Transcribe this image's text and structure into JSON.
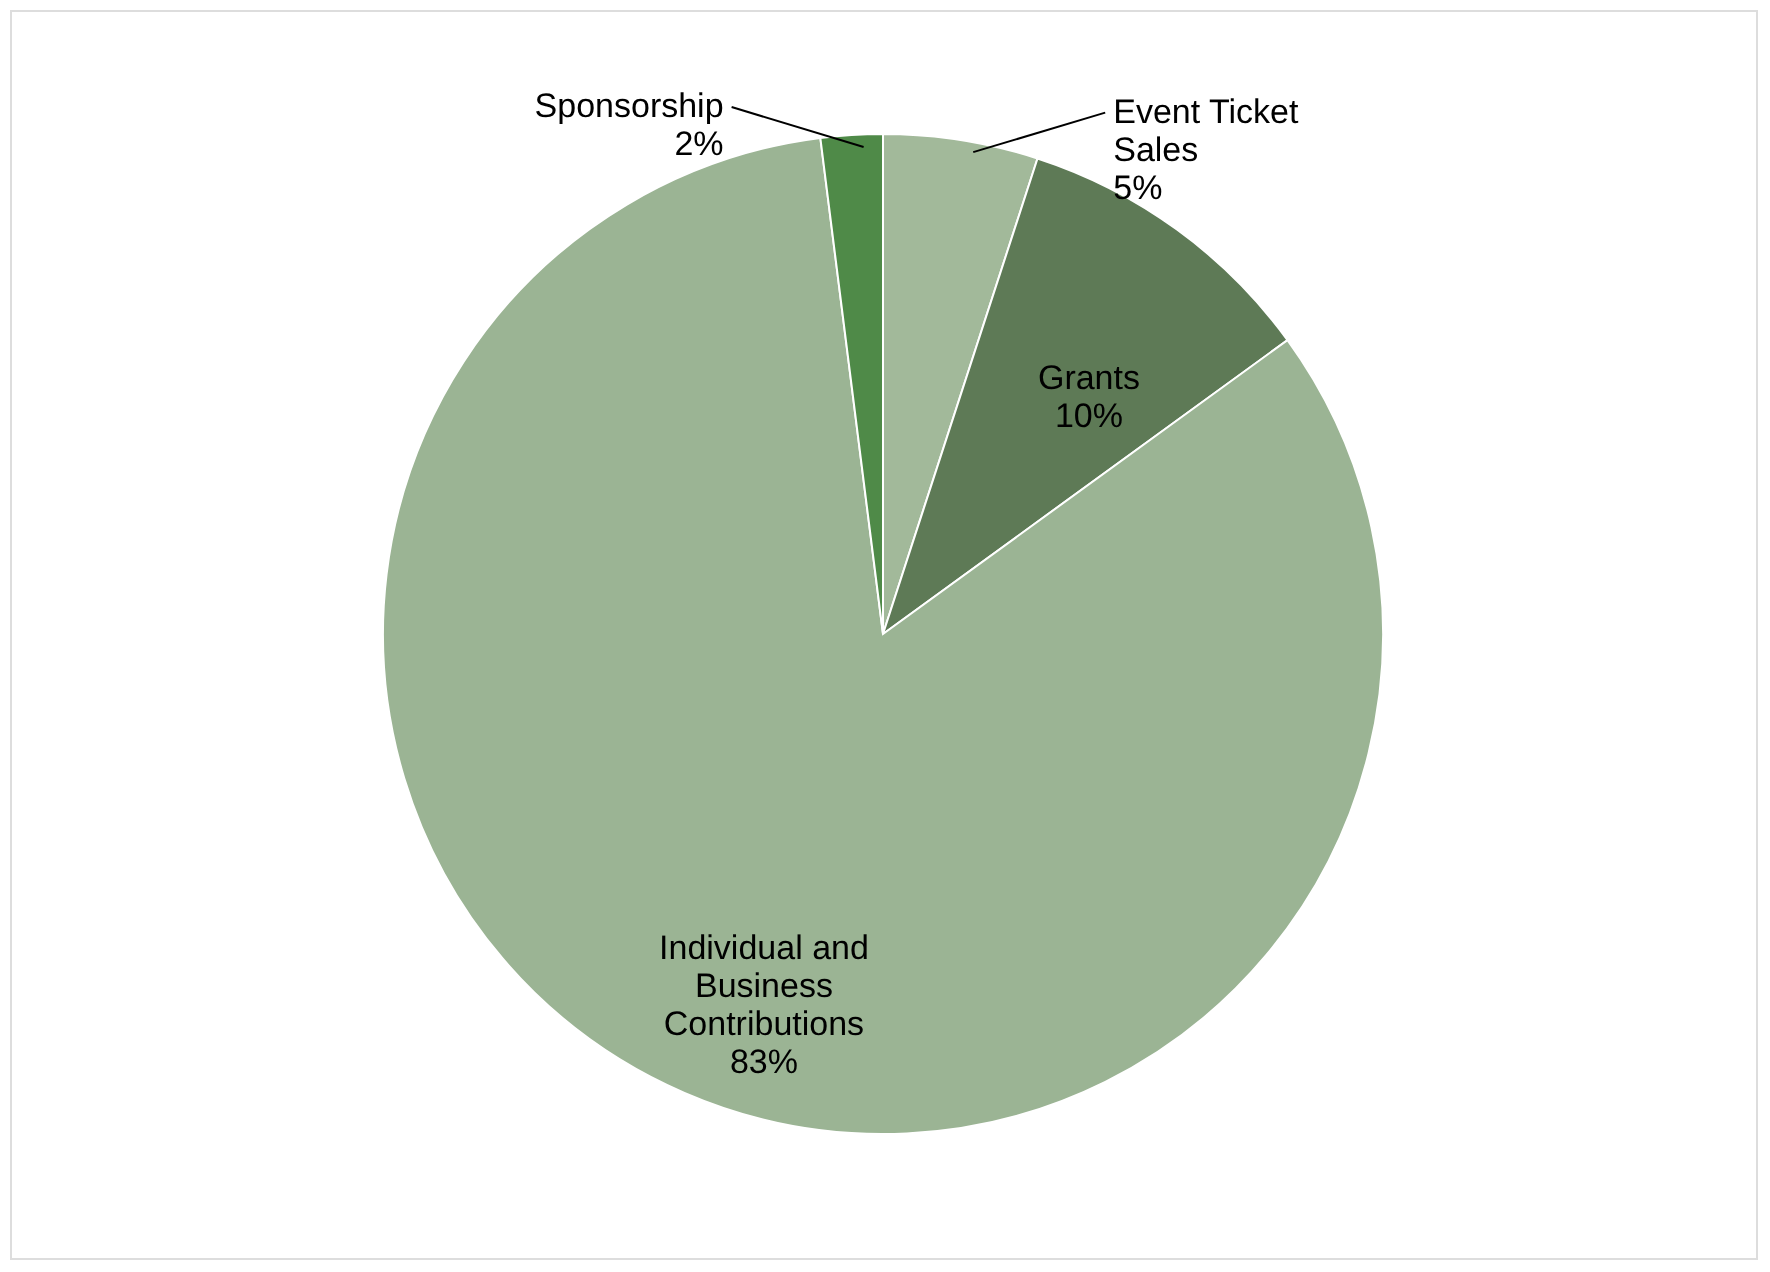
{
  "chart_data": {
    "type": "pie",
    "categories": [
      "Event Ticket Sales",
      "Grants",
      "Individual and Business Contributions",
      "Sponsorship"
    ],
    "values": [
      5,
      10,
      83,
      2
    ],
    "value_labels": [
      "5%",
      "10%",
      "83%",
      "2%"
    ],
    "colors": [
      "#a2b99a",
      "#5e7a56",
      "#9bb494",
      "#4f8a48"
    ]
  }
}
